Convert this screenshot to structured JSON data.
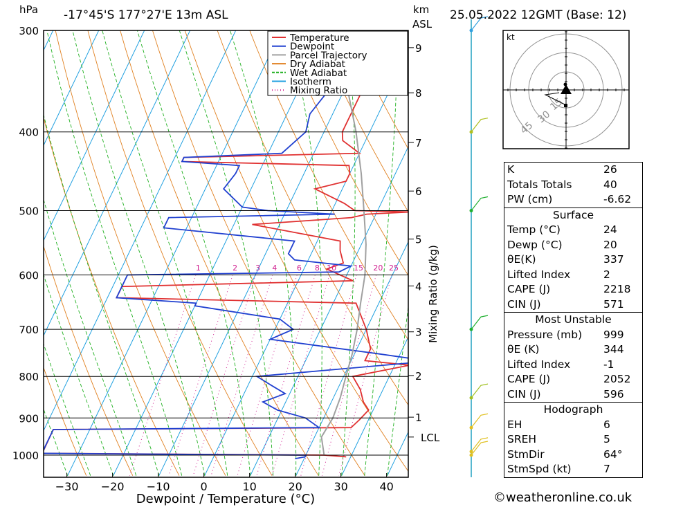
{
  "header": {
    "unit_left": "hPa",
    "location": "-17°45'S 177°27'E 13m ASL",
    "km_label": "km",
    "asl_label": "ASL",
    "datetime": "25.05.2022 12GMT (Base: 12)"
  },
  "chart_data": {
    "type": "line",
    "title": "-17°45'S 177°27'E 13m ASL",
    "xlabel": "Dewpoint / Temperature (°C)",
    "ylabel": "hPa",
    "right_label": "Mixing Ratio (g/kg)",
    "xlim": [
      -38,
      43
    ],
    "ylim": [
      1050,
      300
    ],
    "x_ticks": [
      -30,
      -20,
      -10,
      0,
      10,
      20,
      30,
      40
    ],
    "pressure_ticks": [
      300,
      400,
      500,
      600,
      700,
      800,
      900,
      1000
    ],
    "km_ticks": [
      {
        "label": "9",
        "p": 315
      },
      {
        "label": "8",
        "p": 358
      },
      {
        "label": "7",
        "p": 412
      },
      {
        "label": "6",
        "p": 473
      },
      {
        "label": "5",
        "p": 542
      },
      {
        "label": "4",
        "p": 619
      },
      {
        "label": "3",
        "p": 705
      },
      {
        "label": "2",
        "p": 798
      },
      {
        "label": "1",
        "p": 898
      },
      {
        "label": "LCL",
        "p": 950
      }
    ],
    "mixing_ratio_labels": [
      "1",
      "2",
      "3",
      "4",
      "6",
      "8",
      "10",
      "15",
      "20",
      "25"
    ],
    "legend": [
      {
        "name": "Temperature",
        "color": "#e03030",
        "style": "solid"
      },
      {
        "name": "Dewpoint",
        "color": "#2040d0",
        "style": "solid"
      },
      {
        "name": "Parcel Trajectory",
        "color": "#a0a0a0",
        "style": "solid"
      },
      {
        "name": "Dry Adiabat",
        "color": "#e08020",
        "style": "solid"
      },
      {
        "name": "Wet Adiabat",
        "color": "#20b020",
        "style": "dashed"
      },
      {
        "name": "Isotherm",
        "color": "#20a0e0",
        "style": "solid"
      },
      {
        "name": "Mixing Ratio",
        "color": "#d02090",
        "style": "dotted"
      }
    ],
    "series": [
      {
        "name": "Temperature",
        "color": "#e03030",
        "points": [
          [
            1005,
            29
          ],
          [
            1000,
            24
          ],
          [
            995,
            -38
          ],
          [
            930,
            -38
          ],
          [
            925,
            27
          ],
          [
            905,
            28
          ],
          [
            880,
            29
          ],
          [
            860,
            27
          ],
          [
            830,
            25
          ],
          [
            800,
            22
          ],
          [
            775,
            36
          ],
          [
            765,
            23
          ],
          [
            740,
            23
          ],
          [
            700,
            20
          ],
          [
            650,
            15
          ],
          [
            640,
            -38
          ],
          [
            630,
            -38
          ],
          [
            620,
            -38
          ],
          [
            610,
            12
          ],
          [
            590,
            5
          ],
          [
            580,
            8
          ],
          [
            560,
            6
          ],
          [
            545,
            5
          ],
          [
            520,
            -16
          ],
          [
            510,
            5
          ],
          [
            505,
            8
          ],
          [
            502,
            26
          ],
          [
            500,
            5
          ],
          [
            490,
            2
          ],
          [
            470,
            -6
          ],
          [
            460,
            0
          ],
          [
            450,
            0
          ],
          [
            440,
            -1
          ],
          [
            435,
            -38
          ],
          [
            430,
            -38
          ],
          [
            425,
            0
          ],
          [
            410,
            -5
          ],
          [
            400,
            -6
          ],
          [
            370,
            -6
          ],
          [
            350,
            -6
          ],
          [
            330,
            -7
          ],
          [
            320,
            -9
          ],
          [
            310,
            -10
          ],
          [
            300,
            -11
          ]
        ]
      },
      {
        "name": "Dewpoint",
        "color": "#2040d0",
        "points": [
          [
            1010,
            18
          ],
          [
            1005,
            20
          ],
          [
            1000,
            20
          ],
          [
            995,
            -38
          ],
          [
            975,
            -38
          ],
          [
            930,
            -38
          ],
          [
            925,
            20
          ],
          [
            900,
            16
          ],
          [
            880,
            9
          ],
          [
            860,
            5
          ],
          [
            840,
            9
          ],
          [
            820,
            5
          ],
          [
            800,
            1
          ],
          [
            770,
            38
          ],
          [
            760,
            33
          ],
          [
            750,
            25
          ],
          [
            720,
            0
          ],
          [
            700,
            4
          ],
          [
            680,
            0
          ],
          [
            655,
            -20
          ],
          [
            650,
            -20
          ],
          [
            640,
            -38
          ],
          [
            620,
            -38
          ],
          [
            610,
            -38
          ],
          [
            600,
            -38
          ],
          [
            595,
            8
          ],
          [
            585,
            10
          ],
          [
            575,
            -3
          ],
          [
            565,
            -5
          ],
          [
            545,
            -5
          ],
          [
            525,
            -35
          ],
          [
            510,
            -35
          ],
          [
            505,
            1
          ],
          [
            500,
            -14
          ],
          [
            495,
            -20
          ],
          [
            470,
            -26
          ],
          [
            450,
            -25
          ],
          [
            440,
            -25
          ],
          [
            435,
            -38
          ],
          [
            430,
            -38
          ],
          [
            425,
            -17
          ],
          [
            400,
            -14
          ],
          [
            380,
            -15
          ],
          [
            350,
            -13
          ],
          [
            330,
            -21
          ],
          [
            320,
            -20
          ],
          [
            310,
            -14
          ],
          [
            300,
            -13
          ]
        ]
      },
      {
        "name": "Parcel Trajectory",
        "color": "#a0a0a0",
        "points": [
          [
            1000,
            24
          ],
          [
            950,
            21.5
          ],
          [
            900,
            22
          ],
          [
            850,
            21.5
          ],
          [
            800,
            20.5
          ],
          [
            750,
            19.5
          ],
          [
            700,
            18
          ],
          [
            650,
            16
          ],
          [
            600,
            14
          ],
          [
            550,
            11
          ],
          [
            500,
            7
          ],
          [
            450,
            2.5
          ],
          [
            400,
            -3
          ],
          [
            350,
            -10
          ],
          [
            300,
            -19
          ]
        ]
      }
    ],
    "indices": {
      "K": "26",
      "Totals Totals": "40",
      "PW (cm)": "-6.62"
    },
    "surface": {
      "Temp (°C)": "24",
      "Dewp (°C)": "20",
      "θE(K)": "337",
      "Lifted Index": "2",
      "CAPE (J)": "2218",
      "CIN (J)": "571"
    },
    "most_unstable": {
      "Pressure (mb)": "999",
      "θE (K)": "344",
      "Lifted Index": "-1",
      "CAPE (J)": "2052",
      "CIN (J)": "596"
    },
    "hodograph": {
      "EH": "6",
      "SREH": "5",
      "StmDir": "64°",
      "StmSpd (kt)": "7"
    },
    "hodograph_rings": [
      "15",
      "30",
      "45"
    ],
    "hodograph_unit": "kt"
  },
  "table": {
    "indices": [
      {
        "label": "K",
        "value": "26"
      },
      {
        "label": "Totals Totals",
        "value": "40"
      },
      {
        "label": "PW (cm)",
        "value": "-6.62"
      }
    ],
    "surface_title": "Surface",
    "surface": [
      {
        "label": "Temp (°C)",
        "value": "24"
      },
      {
        "label": "Dewp (°C)",
        "value": "20"
      },
      {
        "label": "θE(K)",
        "value": "337"
      },
      {
        "label": "Lifted Index",
        "value": "2"
      },
      {
        "label": "CAPE (J)",
        "value": "2218"
      },
      {
        "label": "CIN (J)",
        "value": "571"
      }
    ],
    "mu_title": "Most Unstable",
    "mu": [
      {
        "label": "Pressure (mb)",
        "value": "999"
      },
      {
        "label": "θE (K)",
        "value": "344"
      },
      {
        "label": "Lifted Index",
        "value": "-1"
      },
      {
        "label": "CAPE (J)",
        "value": "2052"
      },
      {
        "label": "CIN (J)",
        "value": "596"
      }
    ],
    "hodo_title": "Hodograph",
    "hodo": [
      {
        "label": "EH",
        "value": "6"
      },
      {
        "label": "SREH",
        "value": "5"
      },
      {
        "label": "StmDir",
        "value": "64°"
      },
      {
        "label": "StmSpd (kt)",
        "value": "7"
      }
    ]
  },
  "copyright": "©weatheronline.co.uk"
}
